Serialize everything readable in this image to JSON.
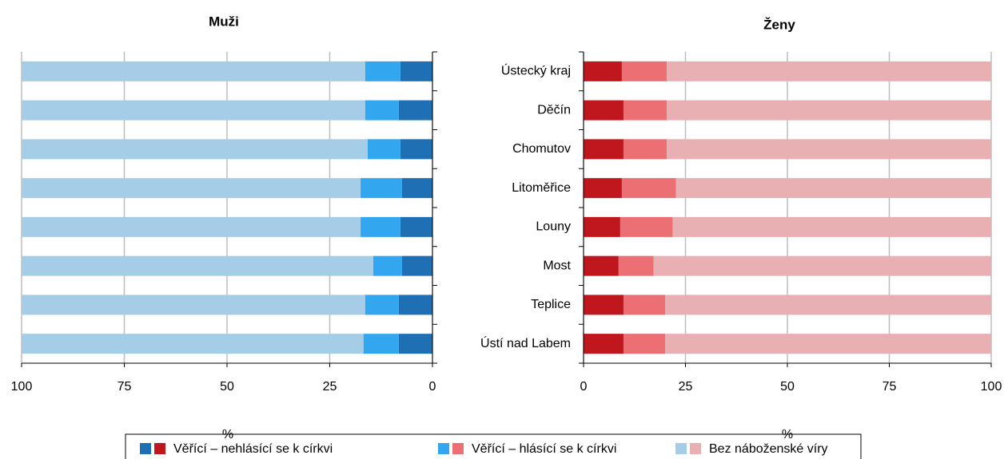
{
  "chart_data": [
    {
      "type": "stacked-bar-horizontal",
      "title": "Muži",
      "x_label": "%",
      "xlim": [
        100,
        0
      ],
      "xticks": [
        100,
        75,
        50,
        25,
        0
      ],
      "grid": true,
      "series": [
        {
          "name": "Věřící – nehlásící se k církvi",
          "color": "#1f6fb5",
          "values": [
            7.8,
            8.2,
            7.8,
            7.4,
            7.8,
            7.4,
            8.2,
            8.2
          ]
        },
        {
          "name": "Věřící – hlásící se k církvi",
          "color": "#33a6f0",
          "values": [
            8.6,
            8.2,
            8.0,
            10.1,
            9.7,
            7.0,
            8.2,
            8.6
          ]
        },
        {
          "name": "Bez náboženské víry",
          "color": "#a6cde8",
          "values": [
            83.6,
            83.6,
            84.2,
            82.5,
            82.5,
            85.6,
            83.6,
            83.2
          ]
        }
      ]
    },
    {
      "type": "stacked-bar-horizontal",
      "title": "Ženy",
      "x_label": "%",
      "categories": [
        "Ústecký kraj",
        "Děčín",
        "Chomutov",
        "Litoměřice",
        "Louny",
        "Most",
        "Teplice",
        "Ústí nad Labem"
      ],
      "xlim": [
        0,
        100
      ],
      "xticks": [
        0,
        25,
        50,
        75,
        100
      ],
      "grid": true,
      "series": [
        {
          "color": "#c0171f",
          "values": [
            9.4,
            9.8,
            9.8,
            9.4,
            9.0,
            8.6,
            9.8,
            9.8
          ]
        },
        {
          "color": "#ec6f73",
          "values": [
            11.0,
            10.6,
            10.6,
            13.3,
            12.9,
            8.6,
            10.2,
            10.2
          ]
        },
        {
          "color": "#e9b0b4",
          "values": [
            79.6,
            79.6,
            79.6,
            77.3,
            78.1,
            82.8,
            80.0,
            80.0
          ]
        }
      ]
    }
  ]
}
